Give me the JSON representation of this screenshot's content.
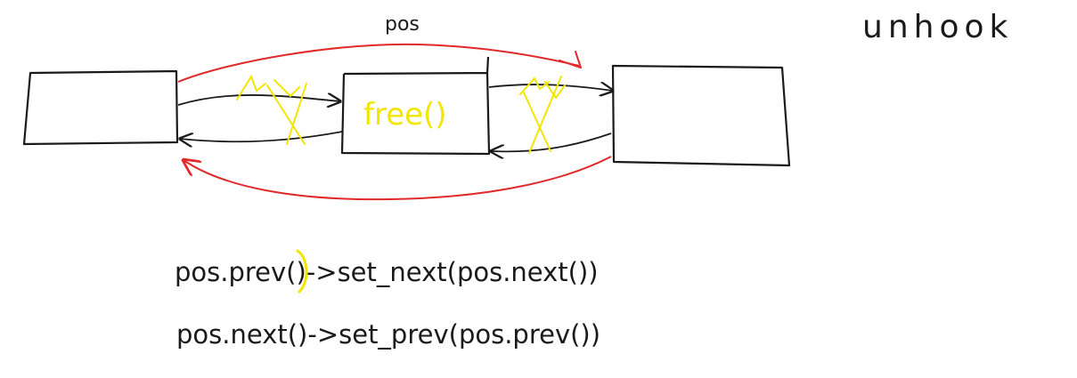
{
  "title": "unhook",
  "pos_label": "pos",
  "middle_node_label": "free()",
  "code_line_1": "pos.prev()->set_next(pos.next())",
  "code_line_2": "pos.next()->set_prev(pos.prev())",
  "colors": {
    "ink": "#1a1a1a",
    "rewire": "#e02a2a",
    "removed": "#f2e600"
  }
}
